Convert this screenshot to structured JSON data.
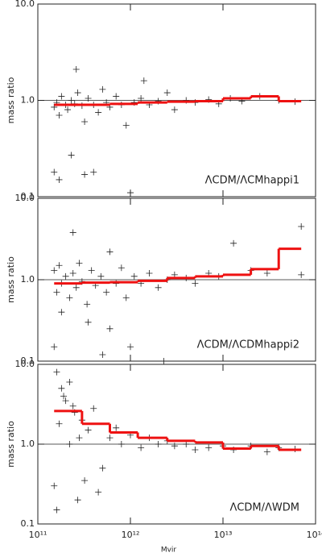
{
  "chart_data": [
    {
      "type": "scatter",
      "ylabel": "mass ratio",
      "annotation": "ΛCDM/ΛCMhappi1",
      "log_x": true,
      "log_y": true,
      "refline": 1,
      "xlim": [
        100000000000.0,
        100000000000000.0
      ],
      "ylim": [
        0.1,
        10
      ],
      "yticks": [
        {
          "value": 10,
          "label": "10.0"
        },
        {
          "value": 1,
          "label": "1.0"
        },
        0.1
      ],
      "points": {
        "color": "#222",
        "x": [
          150000000000.0,
          160000000000.0,
          170000000000.0,
          180000000000.0,
          200000000000.0,
          210000000000.0,
          230000000000.0,
          250000000000.0,
          270000000000.0,
          300000000000.0,
          320000000000.0,
          350000000000.0,
          400000000000.0,
          450000000000.0,
          500000000000.0,
          550000000000.0,
          600000000000.0,
          700000000000.0,
          800000000000.0,
          900000000000.0,
          1100000000000.0,
          1300000000000.0,
          1600000000000.0,
          2000000000000.0,
          2500000000000.0,
          3000000000000.0,
          4000000000000.0,
          5000000000000.0,
          7000000000000.0,
          9000000000000.0,
          12000000000000.0,
          16000000000000.0,
          25000000000000.0,
          40000000000000.0,
          60000000000000.0,
          150000000000.0,
          170000000000.0,
          230000000000.0,
          260000000000.0,
          320000000000.0,
          400000000000.0,
          1000000000000.0,
          1400000000000.0
        ],
        "y": [
          0.85,
          0.95,
          0.7,
          1.1,
          0.9,
          0.8,
          1.0,
          0.92,
          1.2,
          0.88,
          0.6,
          1.05,
          0.9,
          0.75,
          1.3,
          0.95,
          0.85,
          1.1,
          0.9,
          0.55,
          0.95,
          1.05,
          0.9,
          0.98,
          1.2,
          0.8,
          1.0,
          0.95,
          1.02,
          0.92,
          1.05,
          0.98,
          1.1,
          1.0,
          0.97,
          0.18,
          0.15,
          0.27,
          2.1,
          0.17,
          0.18,
          0.11,
          1.6
        ]
      },
      "step": {
        "color": "#ee1111",
        "bins": [
          150000000000.0,
          300000000000.0,
          600000000000.0,
          1200000000000.0,
          2500000000000.0,
          5000000000000.0,
          10000000000000.0,
          20000000000000.0,
          40000000000000.0,
          70000000000000.0
        ],
        "values": [
          0.9,
          0.9,
          0.92,
          0.95,
          0.97,
          0.98,
          1.05,
          1.1,
          0.98
        ]
      }
    },
    {
      "type": "scatter",
      "ylabel": "mass ratio",
      "annotation": "ΛCDM/ΛCDMhappi2",
      "log_x": true,
      "log_y": true,
      "refline": 1,
      "xlim": [
        100000000000.0,
        100000000000000.0
      ],
      "ylim": [
        0.1,
        10
      ],
      "yticks": [
        {
          "value": 10,
          "label": "10.0"
        },
        {
          "value": 1,
          "label": "1.0"
        },
        0.1
      ],
      "points": {
        "color": "#222",
        "x": [
          150000000000.0,
          160000000000.0,
          170000000000.0,
          180000000000.0,
          200000000000.0,
          220000000000.0,
          240000000000.0,
          260000000000.0,
          280000000000.0,
          300000000000.0,
          340000000000.0,
          380000000000.0,
          420000000000.0,
          480000000000.0,
          550000000000.0,
          600000000000.0,
          700000000000.0,
          800000000000.0,
          900000000000.0,
          1100000000000.0,
          1300000000000.0,
          1600000000000.0,
          2000000000000.0,
          2500000000000.0,
          3000000000000.0,
          4000000000000.0,
          5000000000000.0,
          7000000000000.0,
          9000000000000.0,
          13000000000000.0,
          20000000000000.0,
          30000000000000.0,
          70000000000000.0,
          70000000000000.0,
          240000000000.0,
          150000000000.0,
          2300000000000.0,
          500000000000.0,
          1000000000000.0,
          350000000000.0,
          180000000000.0,
          600000000000.0
        ],
        "y": [
          1.3,
          0.7,
          1.5,
          0.9,
          1.1,
          0.6,
          1.2,
          0.8,
          1.6,
          0.95,
          0.5,
          1.3,
          0.85,
          1.1,
          0.7,
          2.2,
          0.9,
          1.4,
          0.6,
          1.1,
          0.9,
          1.2,
          0.8,
          1.0,
          1.15,
          1.05,
          0.9,
          1.2,
          1.1,
          2.8,
          1.3,
          1.2,
          4.5,
          1.15,
          3.8,
          0.15,
          0.1,
          0.12,
          0.15,
          0.3,
          0.4,
          0.25
        ]
      },
      "step": {
        "color": "#ee1111",
        "bins": [
          150000000000.0,
          300000000000.0,
          600000000000.0,
          1200000000000.0,
          2500000000000.0,
          5000000000000.0,
          10000000000000.0,
          20000000000000.0,
          40000000000000.0,
          70000000000000.0
        ],
        "values": [
          0.9,
          0.92,
          0.93,
          0.97,
          1.05,
          1.1,
          1.15,
          1.35,
          2.4
        ]
      }
    },
    {
      "type": "scatter",
      "ylabel": "mass ratio",
      "annotation": "ΛCDM/ΛWDM",
      "xlabel": "Mvir",
      "log_x": true,
      "log_y": true,
      "refline": 1,
      "xlim": [
        100000000000.0,
        100000000000000.0
      ],
      "ylim": [
        0.1,
        10
      ],
      "xticks": [
        {
          "value": 100000000000.0,
          "label": "10¹¹"
        },
        {
          "value": 1000000000000.0,
          "label": "10¹²"
        },
        {
          "value": 10000000000000.0,
          "label": "10¹³"
        },
        {
          "value": 100000000000000.0,
          "label": "10¹⁴"
        }
      ],
      "yticks": [
        {
          "value": 10,
          "label": "10.0"
        },
        {
          "value": 1,
          "label": "1.0"
        },
        0.1
      ],
      "points": {
        "color": "#222",
        "x": [
          160000000000.0,
          180000000000.0,
          200000000000.0,
          220000000000.0,
          250000000000.0,
          150000000000.0,
          160000000000.0,
          300000000000.0,
          350000000000.0,
          400000000000.0,
          500000000000.0,
          600000000000.0,
          700000000000.0,
          800000000000.0,
          1000000000000.0,
          1300000000000.0,
          1600000000000.0,
          2000000000000.0,
          2500000000000.0,
          3000000000000.0,
          4000000000000.0,
          5000000000000.0,
          7000000000000.0,
          10000000000000.0,
          13000000000000.0,
          20000000000000.0,
          30000000000000.0,
          40000000000000.0,
          60000000000000.0,
          270000000000.0,
          320000000000.0,
          450000000000.0,
          220000000000.0,
          170000000000.0,
          190000000000.0,
          240000000000.0,
          280000000000.0
        ],
        "y": [
          8,
          5,
          3.5,
          6,
          2.5,
          0.3,
          0.15,
          2,
          1.5,
          2.8,
          0.5,
          1.2,
          1.6,
          1.0,
          1.3,
          0.9,
          1.2,
          1.0,
          1.1,
          0.95,
          1.0,
          0.85,
          0.9,
          0.95,
          0.85,
          0.95,
          0.8,
          0.9,
          0.87,
          0.2,
          0.35,
          0.25,
          1.0,
          1.8,
          4,
          3,
          1.2
        ]
      },
      "step": {
        "color": "#ee1111",
        "bins": [
          150000000000.0,
          300000000000.0,
          600000000000.0,
          1200000000000.0,
          2500000000000.0,
          5000000000000.0,
          10000000000000.0,
          20000000000000.0,
          40000000000000.0,
          70000000000000.0
        ],
        "values": [
          2.6,
          1.8,
          1.4,
          1.2,
          1.1,
          1.05,
          0.88,
          0.95,
          0.85
        ]
      }
    }
  ]
}
